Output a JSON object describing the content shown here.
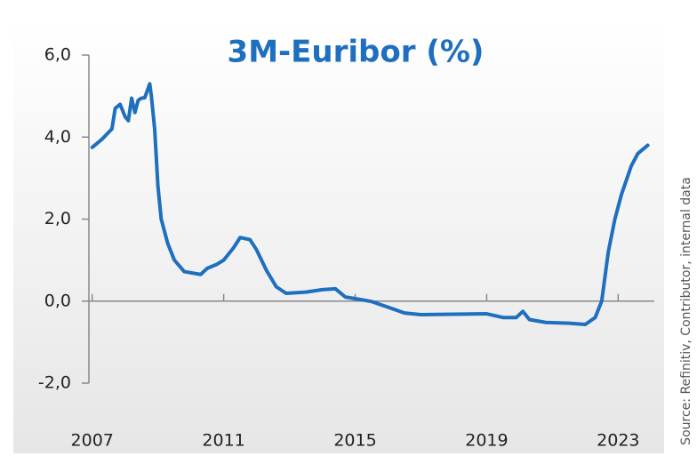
{
  "chart_data": {
    "type": "line",
    "title": "3M-Euribor (%)",
    "source": "Source: Refinitiv, Contributor, internal data",
    "x": [
      2007.0,
      2007.3,
      2007.6,
      2007.7,
      2007.85,
      2008.0,
      2008.1,
      2008.2,
      2008.3,
      2008.4,
      2008.5,
      2008.6,
      2008.75,
      2008.8,
      2008.9,
      2009.0,
      2009.1,
      2009.3,
      2009.5,
      2009.8,
      2010.3,
      2010.5,
      2010.8,
      2011.0,
      2011.3,
      2011.5,
      2011.8,
      2012.0,
      2012.3,
      2012.6,
      2012.9,
      2013.5,
      2014.0,
      2014.4,
      2014.7,
      2015.0,
      2015.5,
      2016.0,
      2016.5,
      2017.0,
      2018.0,
      2019.0,
      2019.5,
      2019.9,
      2020.1,
      2020.3,
      2020.8,
      2021.5,
      2022.0,
      2022.3,
      2022.5,
      2022.7,
      2022.9,
      2023.1,
      2023.4,
      2023.6,
      2023.9
    ],
    "series": [
      {
        "name": "3M-Euribor",
        "color": "#1f6fbf",
        "values": [
          3.75,
          3.95,
          4.2,
          4.7,
          4.8,
          4.5,
          4.4,
          4.95,
          4.6,
          4.9,
          4.95,
          4.96,
          5.3,
          5.0,
          4.2,
          2.8,
          2.0,
          1.4,
          1.0,
          0.72,
          0.65,
          0.8,
          0.9,
          1.0,
          1.3,
          1.55,
          1.5,
          1.25,
          0.75,
          0.35,
          0.19,
          0.22,
          0.28,
          0.3,
          0.1,
          0.06,
          -0.01,
          -0.15,
          -0.29,
          -0.33,
          -0.32,
          -0.31,
          -0.4,
          -0.4,
          -0.25,
          -0.45,
          -0.52,
          -0.54,
          -0.57,
          -0.4,
          0.0,
          1.2,
          2.0,
          2.6,
          3.3,
          3.6,
          3.8
        ]
      }
    ],
    "xlim": [
      2006.9,
      2024.1
    ],
    "xticks": [
      2007,
      2011,
      2015,
      2019,
      2023
    ],
    "ylim": [
      -2,
      6
    ],
    "yticks": [
      {
        "value": -2,
        "label": "-2,0"
      },
      {
        "value": 0,
        "label": "0,0"
      },
      {
        "value": 2,
        "label": "2,0"
      },
      {
        "value": 4,
        "label": "4,0"
      },
      {
        "value": 6,
        "label": "6,0"
      }
    ]
  }
}
